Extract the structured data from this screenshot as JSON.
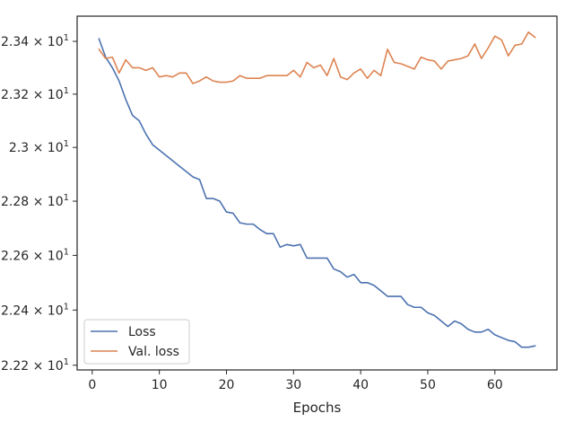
{
  "chart_data": {
    "type": "line",
    "title": "",
    "xlabel": "Epochs",
    "ylabel": "",
    "xlim": [
      -2.25,
      69.25
    ],
    "ylim": [
      22.183,
      23.496
    ],
    "yscale": "log",
    "grid": false,
    "legend_position": "lower-left",
    "x_ticks": [
      0,
      10,
      20,
      30,
      40,
      50,
      60
    ],
    "x_tick_labels": [
      "0",
      "10",
      "20",
      "30",
      "40",
      "50",
      "60"
    ],
    "y_ticks": [
      22.2,
      22.4,
      22.6,
      22.8,
      23.0,
      23.2,
      23.4
    ],
    "y_tick_mantissas": [
      "2.22",
      "2.24",
      "2.26",
      "2.28",
      "2.3",
      "2.32",
      "2.34"
    ],
    "y_tick_base": "10",
    "y_tick_exponent": "1",
    "y_tick_times": "×",
    "x": [
      1,
      2,
      3,
      4,
      5,
      6,
      7,
      8,
      9,
      10,
      11,
      12,
      13,
      14,
      15,
      16,
      17,
      18,
      19,
      20,
      21,
      22,
      23,
      24,
      25,
      26,
      27,
      28,
      29,
      30,
      31,
      32,
      33,
      34,
      35,
      36,
      37,
      38,
      39,
      40,
      41,
      42,
      43,
      44,
      45,
      46,
      47,
      48,
      49,
      50,
      51,
      52,
      53,
      54,
      55,
      56,
      57,
      58,
      59,
      60,
      61,
      62,
      63,
      64,
      65,
      66
    ],
    "series": [
      {
        "name": "Loss",
        "color": "#4c72b0",
        "values": [
          23.41,
          23.34,
          23.3,
          23.25,
          23.18,
          23.12,
          23.1,
          23.05,
          23.01,
          22.99,
          22.97,
          22.95,
          22.93,
          22.91,
          22.89,
          22.88,
          22.81,
          22.81,
          22.8,
          22.76,
          22.755,
          22.72,
          22.715,
          22.715,
          22.695,
          22.68,
          22.68,
          22.63,
          22.64,
          22.635,
          22.64,
          22.59,
          22.59,
          22.59,
          22.59,
          22.55,
          22.54,
          22.52,
          22.53,
          22.5,
          22.5,
          22.49,
          22.47,
          22.45,
          22.45,
          22.45,
          22.42,
          22.41,
          22.41,
          22.39,
          22.38,
          22.36,
          22.34,
          22.36,
          22.35,
          22.33,
          22.32,
          22.32,
          22.33,
          22.31,
          22.3,
          22.29,
          22.285,
          22.265,
          22.265,
          22.27
        ]
      },
      {
        "name": "Val. loss",
        "color": "#dd8452",
        "values": [
          23.37,
          23.335,
          23.34,
          23.28,
          23.33,
          23.3,
          23.3,
          23.29,
          23.3,
          23.265,
          23.27,
          23.265,
          23.28,
          23.28,
          23.24,
          23.25,
          23.265,
          23.25,
          23.245,
          23.245,
          23.25,
          23.27,
          23.26,
          23.26,
          23.26,
          23.27,
          23.27,
          23.27,
          23.27,
          23.29,
          23.265,
          23.32,
          23.3,
          23.31,
          23.27,
          23.335,
          23.265,
          23.255,
          23.28,
          23.295,
          23.26,
          23.29,
          23.27,
          23.37,
          23.32,
          23.315,
          23.305,
          23.295,
          23.34,
          23.33,
          23.325,
          23.295,
          23.325,
          23.33,
          23.335,
          23.345,
          23.39,
          23.335,
          23.375,
          23.42,
          23.405,
          23.345,
          23.385,
          23.39,
          23.435,
          23.415
        ]
      }
    ]
  }
}
